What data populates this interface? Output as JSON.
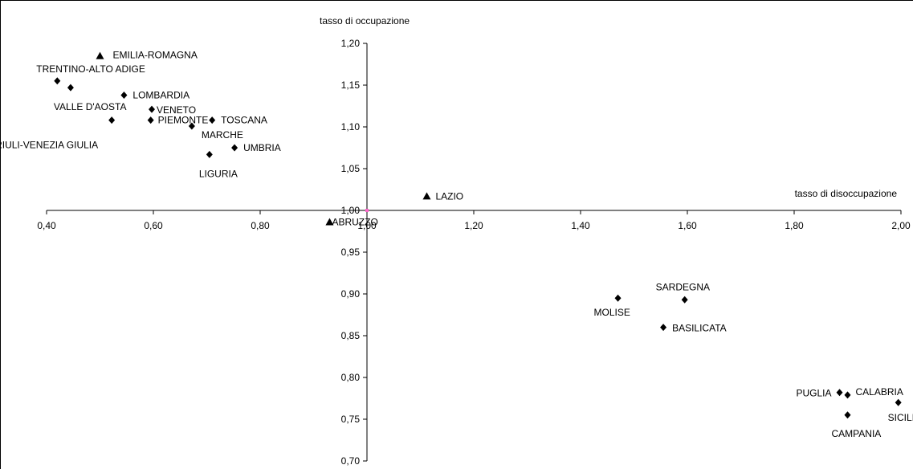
{
  "chart_data": {
    "type": "scatter",
    "xlabel": "tasso di disoccupazione",
    "ylabel": "tasso di occupazione",
    "xlim": [
      0.4,
      2.0
    ],
    "ylim": [
      0.7,
      1.2
    ],
    "x_ticks": [
      "0,40",
      "0,60",
      "0,80",
      "1,00",
      "1,20",
      "1,40",
      "1,60",
      "1,80",
      "2,00"
    ],
    "y_ticks": [
      "0,70",
      "0,75",
      "0,80",
      "0,85",
      "0,90",
      "0,95",
      "1,00",
      "1,05",
      "1,10",
      "1,15",
      "1,20"
    ],
    "grid": false,
    "legend": "none",
    "axes_cross_at": [
      1.0,
      1.0
    ],
    "colors": {
      "marker": "#000000",
      "origin_marker": "#ff66cc"
    },
    "points": [
      {
        "label": "EMILIA-ROMAGNA",
        "x": 0.5,
        "y": 1.185,
        "marker": "triangle"
      },
      {
        "label": "TRENTINO-ALTO ADIGE",
        "x": 0.42,
        "y": 1.155,
        "marker": "diamond"
      },
      {
        "label": "VALLE D'AOSTA",
        "x": 0.445,
        "y": 1.147,
        "marker": "diamond"
      },
      {
        "label": "LOMBARDIA",
        "x": 0.545,
        "y": 1.138,
        "marker": "diamond"
      },
      {
        "label": "VENETO",
        "x": 0.597,
        "y": 1.121,
        "marker": "diamond"
      },
      {
        "label": "PIEMONTE",
        "x": 0.595,
        "y": 1.108,
        "marker": "diamond"
      },
      {
        "label": "TOSCANA",
        "x": 0.71,
        "y": 1.108,
        "marker": "diamond"
      },
      {
        "label": "MARCHE",
        "x": 0.672,
        "y": 1.101,
        "marker": "diamond"
      },
      {
        "label": "FRIULI-VENEZIA GIULIA",
        "x": 0.522,
        "y": 1.108,
        "marker": "diamond"
      },
      {
        "label": "UMBRIA",
        "x": 0.752,
        "y": 1.075,
        "marker": "diamond"
      },
      {
        "label": "LIGURIA",
        "x": 0.705,
        "y": 1.067,
        "marker": "diamond"
      },
      {
        "label": "LAZIO",
        "x": 1.112,
        "y": 1.017,
        "marker": "triangle"
      },
      {
        "label": "ABRUZZO",
        "x": 0.93,
        "y": 0.986,
        "marker": "triangle"
      },
      {
        "label": "MOLISE",
        "x": 1.47,
        "y": 0.895,
        "marker": "diamond"
      },
      {
        "label": "SARDEGNA",
        "x": 1.595,
        "y": 0.893,
        "marker": "diamond"
      },
      {
        "label": "BASILICATA",
        "x": 1.555,
        "y": 0.86,
        "marker": "diamond"
      },
      {
        "label": "PUGLIA",
        "x": 1.885,
        "y": 0.782,
        "marker": "diamond"
      },
      {
        "label": "CALABRIA",
        "x": 1.9,
        "y": 0.779,
        "marker": "diamond"
      },
      {
        "label": "CAMPANIA",
        "x": 1.9,
        "y": 0.755,
        "marker": "diamond"
      },
      {
        "label": "SICILIA",
        "x": 1.995,
        "y": 0.77,
        "marker": "diamond"
      }
    ]
  }
}
